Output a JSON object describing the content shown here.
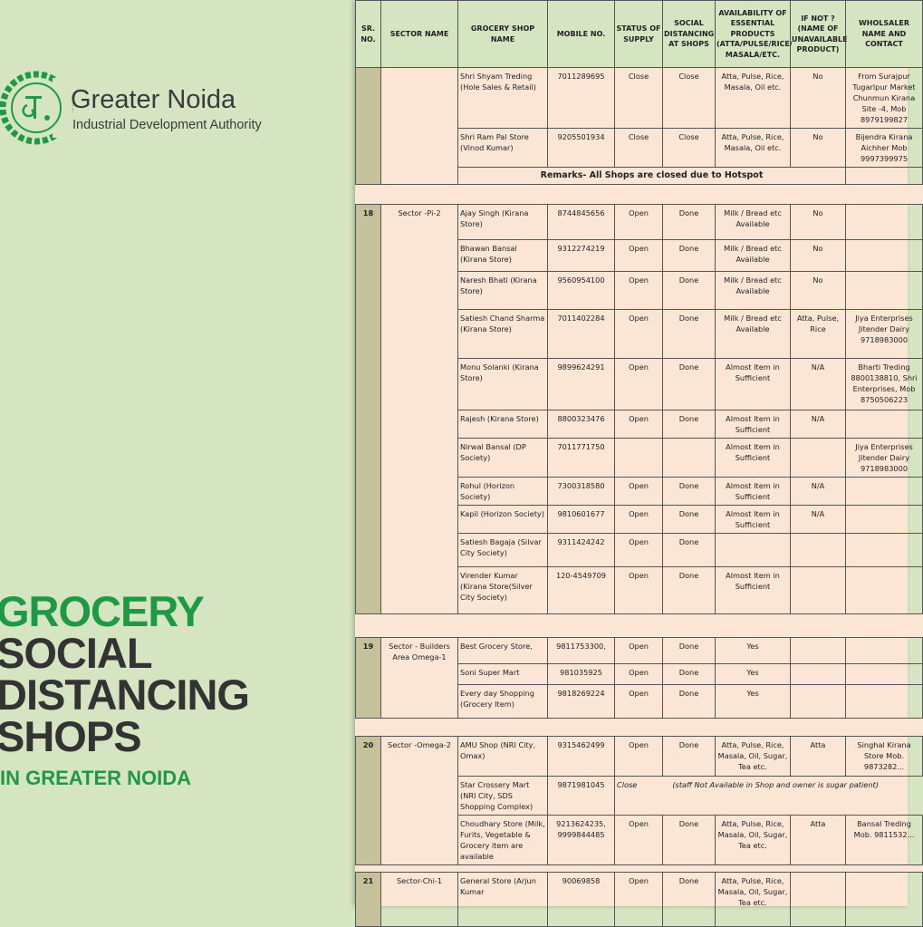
{
  "brand": {
    "name": "Greater Noida",
    "subtitle": "Industrial Development Authority",
    "colors": {
      "green": "#1f9a44",
      "dark": "#333333",
      "background": "#d6e5c1",
      "sheet": "#fbe6d6",
      "sr_column": "#c5c19a"
    }
  },
  "headline": {
    "line1": "GROCERY",
    "line2": "SOCIAL",
    "line3": "DISTANCING",
    "line4": "SHOPS",
    "sub": "IN GREATER NOIDA"
  },
  "table": {
    "headers": {
      "sr": "SR. NO.",
      "sector": "SECTOR NAME",
      "shop": "GROCERY SHOP NAME",
      "mobile": "MOBILE NO.",
      "status": "STATUS OF SUPPLY",
      "distancing": "SOCIAL DISTANCING AT SHOPS",
      "availability": "AVAILABILITY OF ESSENTIAL PRODUCTS (ATTA/PULSE/RICE/ MASALA/ETC.",
      "ifnot": "IF NOT ? (NAME OF UNAVAILABLE PRODUCT)",
      "wholesaler": "WHOLSALER NAME AND CONTACT"
    },
    "top_group": {
      "rows": [
        {
          "shop": "Shri Shyam Treding (Hole Sales & Retail)",
          "mobile": "7011289695",
          "status": "Close",
          "distancing": "Close",
          "availability": "Atta, Pulse, Rice, Masala, Oil etc.",
          "ifnot": "No",
          "wholesaler": "From Surajpur Tugarlpur Market Chunmun Kirana Site -4, Mob 8979199827"
        },
        {
          "shop": "Shri Ram Pal Store (Vinod Kumar)",
          "mobile": "9205501934",
          "status": "Close",
          "distancing": "Close",
          "availability": "Atta, Pulse, Rice, Masala, Oil etc.",
          "ifnot": "No",
          "wholesaler": "Bijendra Kirana Aichher Mob 9997399975"
        }
      ],
      "remark": "Remarks- All Shops are closed due to Hotspot"
    },
    "group18": {
      "sr": "18",
      "sector": "Sector -Pi-2",
      "rows": [
        {
          "shop": "Ajay Singh (Kirana Store)",
          "mobile": "8744845656",
          "status": "Open",
          "distancing": "Done",
          "availability": "Milk / Bread etc Available",
          "ifnot": "No",
          "wholesaler": ""
        },
        {
          "shop": "Bhawan Bansal (Kirana Store)",
          "mobile": "9312274219",
          "status": "Open",
          "distancing": "Done",
          "availability": "Milk / Bread etc Available",
          "ifnot": "No",
          "wholesaler": ""
        },
        {
          "shop": "Naresh Bhati (Kirana Store)",
          "mobile": "9560954100",
          "status": "Open",
          "distancing": "Done",
          "availability": "Milk / Bread etc Available",
          "ifnot": "No",
          "wholesaler": ""
        },
        {
          "shop": "Satiesh Chand Sharma (Kirana Store)",
          "mobile": "7011402284",
          "status": "Open",
          "distancing": "Done",
          "availability": "Milk / Bread etc Available",
          "ifnot": "Atta, Pulse, Rice",
          "wholesaler": "Jiya Enterprises Jitender Dairy 9718983000"
        },
        {
          "shop": "Monu Solanki (Kirana Store)",
          "mobile": "9899624291",
          "status": "Open",
          "distancing": "Done",
          "availability": "Almost Item in Sufficient",
          "ifnot": "N/A",
          "wholesaler": "Bharti Treding 8800138810, Shri Enterprises, Mob 8750506223"
        },
        {
          "shop": "Rajesh (Kirana Store)",
          "mobile": "8800323476",
          "status": "Open",
          "distancing": "Done",
          "availability": "Almost Item in Sufficient",
          "ifnot": "N/A",
          "wholesaler": ""
        },
        {
          "shop": "Nirwal Bansal (DP Society)",
          "mobile": "7011771750",
          "status": "",
          "distancing": "",
          "availability": "Almost Item in Sufficient",
          "ifnot": "",
          "wholesaler": "Jiya Enterprises Jitender Dairy 9718983000"
        },
        {
          "shop": "Rohul (Horizon Society)",
          "mobile": "7300318580",
          "status": "Open",
          "distancing": "Done",
          "availability": "Almost Item in Sufficient",
          "ifnot": "N/A",
          "wholesaler": ""
        },
        {
          "shop": "Kapil (Horizon Society)",
          "mobile": "9810601677",
          "status": "Open",
          "distancing": "Done",
          "availability": "Almost Item in Sufficient",
          "ifnot": "N/A",
          "wholesaler": ""
        },
        {
          "shop": "Satiesh Bagaja (Silvar City Society)",
          "mobile": "9311424242",
          "status": "Open",
          "distancing": "Done",
          "availability": "",
          "ifnot": "",
          "wholesaler": ""
        },
        {
          "shop": "Virender Kumar (Kirana Store(Silver City Society)",
          "mobile": "120-4549709",
          "status": "Open",
          "distancing": "Done",
          "availability": "Almost Item in Sufficient",
          "ifnot": "",
          "wholesaler": ""
        }
      ]
    },
    "group19": {
      "sr": "19",
      "sector": "Sector - Builders Area Omega-1",
      "rows": [
        {
          "shop": "Best Grocery Store,",
          "mobile": "9811753300,",
          "status": "Open",
          "distancing": "Done",
          "availability": "Yes",
          "ifnot": "",
          "wholesaler": ""
        },
        {
          "shop": "Soni Super Mart",
          "mobile": "981035925",
          "status": "Open",
          "distancing": "Done",
          "availability": "Yes",
          "ifnot": "",
          "wholesaler": ""
        },
        {
          "shop": "Every day Shopping (Grocery Item)",
          "mobile": "9818269224",
          "status": "Open",
          "distancing": "Done",
          "availability": "Yes",
          "ifnot": "",
          "wholesaler": ""
        }
      ]
    },
    "group20": {
      "sr": "20",
      "sector": "Sector -Omega-2",
      "rows": [
        {
          "shop": "AMU Shop (NRI City, Omax)",
          "mobile": "9315462499",
          "status": "Open",
          "distancing": "Done",
          "availability": "Atta, Pulse, Rice, Masala, Oil, Sugar, Tea etc.",
          "ifnot": "Atta",
          "wholesaler": "Singhal Kirana Store Mob. 9873282..."
        },
        {
          "shop": "Star Crossery Mart (NRI City, SDS Shopping Complex)",
          "mobile": "9871981045",
          "status": "Close",
          "note": "(staff Not Available in Shop and owner is sugar patient)"
        },
        {
          "shop": "Choudhary Store (Milk, Furits, Vegetable & Grocery item are available",
          "mobile": "9213624235, 9999844485",
          "status": "Open",
          "distancing": "Done",
          "availability": "Atta, Pulse, Rice, Masala, Oil, Sugar, Tea etc.",
          "ifnot": "Atta",
          "wholesaler": "Bansal Treding Mob. 9811532..."
        }
      ]
    },
    "group21": {
      "sr": "21",
      "sector": "Sector-Chi-1",
      "rows": [
        {
          "shop": "General Store (Arjun Kumar",
          "mobile": "90069858",
          "status": "Open",
          "distancing": "Done",
          "availability": "Atta, Pulse, Rice, Masala, Oil, Sugar, Tea etc.",
          "ifnot": "",
          "wholesaler": ""
        }
      ]
    }
  }
}
